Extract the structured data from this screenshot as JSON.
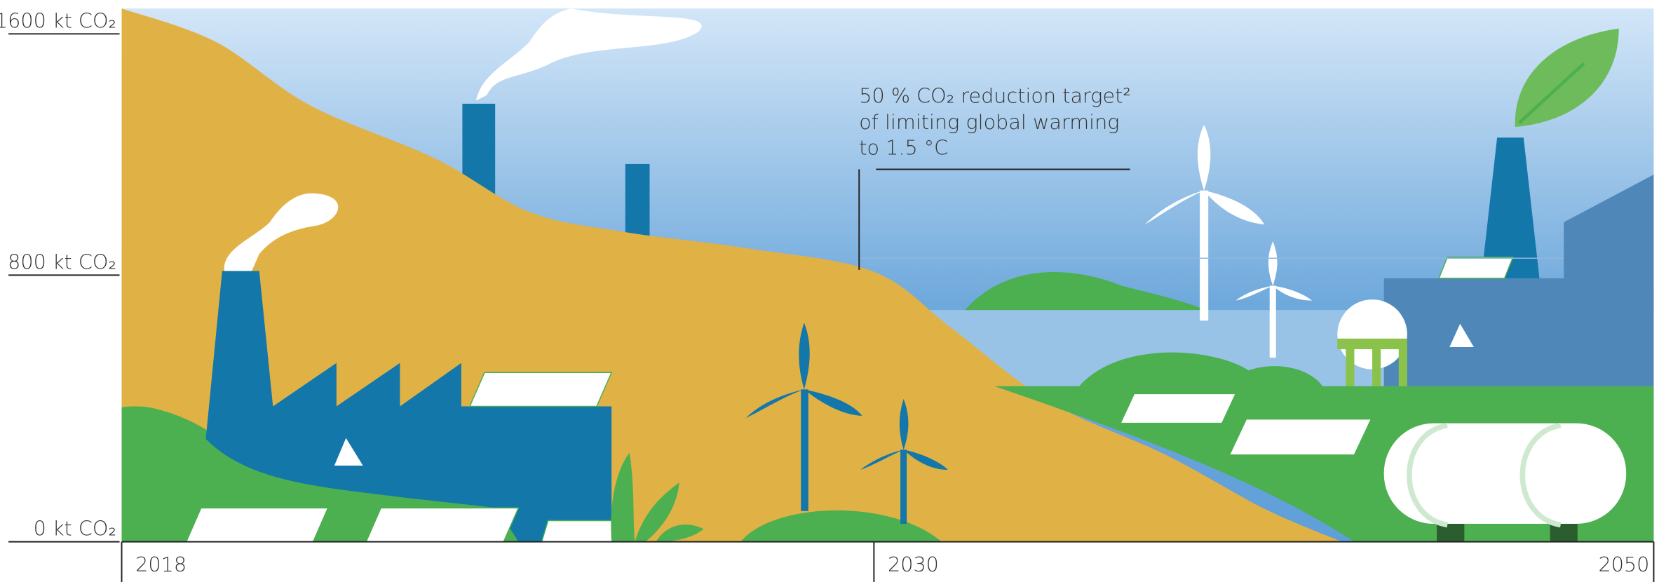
{
  "chart_data": {
    "type": "area",
    "x": [
      2018,
      2019.5,
      2021,
      2023,
      2024.5,
      2026,
      2028,
      2030,
      2032,
      2034.5,
      2037.5,
      2040,
      2042
    ],
    "values": [
      1600,
      1500,
      1310,
      1150,
      990,
      930,
      880,
      810,
      640,
      420,
      260,
      100,
      0
    ],
    "color": "#e0b246",
    "xlim": [
      2018,
      2050
    ],
    "xticks": [
      2018,
      2030,
      2050
    ],
    "ylim": [
      0,
      1600
    ],
    "yticks": [
      {
        "value": 0,
        "label": "0 kt CO₂"
      },
      {
        "value": 800,
        "label": "800 kt CO₂"
      },
      {
        "value": 1600,
        "label": "1600 kt CO₂"
      }
    ],
    "annotation": [
      "50 % CO₂ reduction target²",
      "of  limiting global  warming",
      "to 1.5 °C"
    ]
  }
}
